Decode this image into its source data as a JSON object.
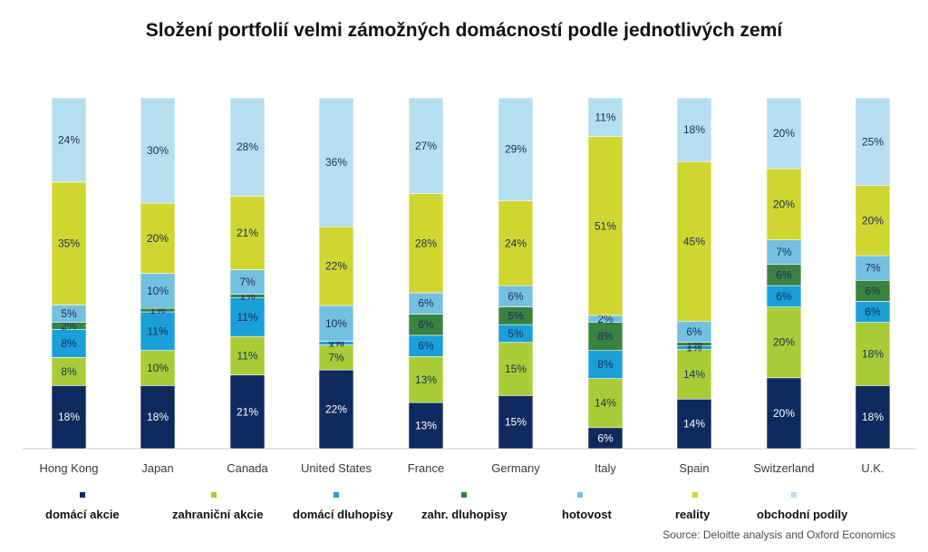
{
  "chart_data": {
    "type": "bar",
    "stacked": true,
    "title": "Složení portfolií velmi zámožných domácností podle jednotlivých zemí",
    "xlabel": "",
    "ylabel": "",
    "ylim": [
      0,
      100
    ],
    "categories": [
      "Hong Kong",
      "Japan",
      "Canada",
      "United States",
      "France",
      "Germany",
      "Italy",
      "Spain",
      "Switzerland",
      "U.K."
    ],
    "series": [
      {
        "name": "domácí akcie",
        "color": "#0f2a5e",
        "values": [
          18,
          18,
          21,
          22,
          13,
          15,
          6,
          14,
          20,
          18
        ],
        "labels": [
          "18%",
          "18%",
          "21%",
          "22%",
          "13%",
          "15%",
          "6%",
          "14%",
          "20%",
          "18%"
        ]
      },
      {
        "name": "zahraniční akcie",
        "color": "#a9cc36",
        "values": [
          8,
          10,
          11,
          7,
          13,
          15,
          14,
          14,
          20,
          18
        ],
        "labels": [
          "8%",
          "10%",
          "11%",
          "7%",
          "13%",
          "15%",
          "14%",
          "14%",
          "20%",
          "18%"
        ]
      },
      {
        "name": "domácí dluhopisy",
        "color": "#1a9fd8",
        "values": [
          8,
          11,
          11,
          1,
          6,
          5,
          8,
          1,
          6,
          6
        ],
        "labels": [
          "8%",
          "11%",
          "11%",
          "1%",
          "6%",
          "5%",
          "8%",
          "1%",
          "6%",
          "6%"
        ]
      },
      {
        "name": "zahr. dluhopisy",
        "color": "#3a8242",
        "values": [
          2,
          1,
          1,
          0,
          6,
          5,
          8,
          1,
          6,
          6
        ],
        "labels": [
          "2%",
          "1%",
          "1%",
          "0%",
          "6%",
          "5%",
          "8%",
          "1%",
          "6%",
          "6%"
        ]
      },
      {
        "name": "hotovost",
        "color": "#73c0e0",
        "values": [
          5,
          10,
          7,
          10,
          6,
          6,
          2,
          6,
          7,
          7
        ],
        "labels": [
          "5%",
          "10%",
          "7%",
          "10%",
          "6%",
          "6%",
          "2%",
          "6%",
          "7%",
          "7%"
        ]
      },
      {
        "name": "reality",
        "color": "#cfd630",
        "values": [
          35,
          20,
          21,
          22,
          28,
          24,
          51,
          45,
          20,
          20
        ],
        "labels": [
          "35%",
          "20%",
          "21%",
          "22%",
          "28%",
          "24%",
          "51%",
          "45%",
          "20%",
          "20%"
        ]
      },
      {
        "name": "obchodní podíly",
        "color": "#b5dff1",
        "values": [
          24,
          30,
          28,
          36,
          27,
          29,
          11,
          18,
          20,
          25
        ],
        "labels": [
          "24%",
          "30%",
          "28%",
          "36%",
          "27%",
          "29%",
          "11%",
          "18%",
          "20%",
          "25%"
        ]
      }
    ],
    "source": "Source: Deloitte analysis and Oxford Economics",
    "grid": false,
    "legend_position": "bottom"
  }
}
